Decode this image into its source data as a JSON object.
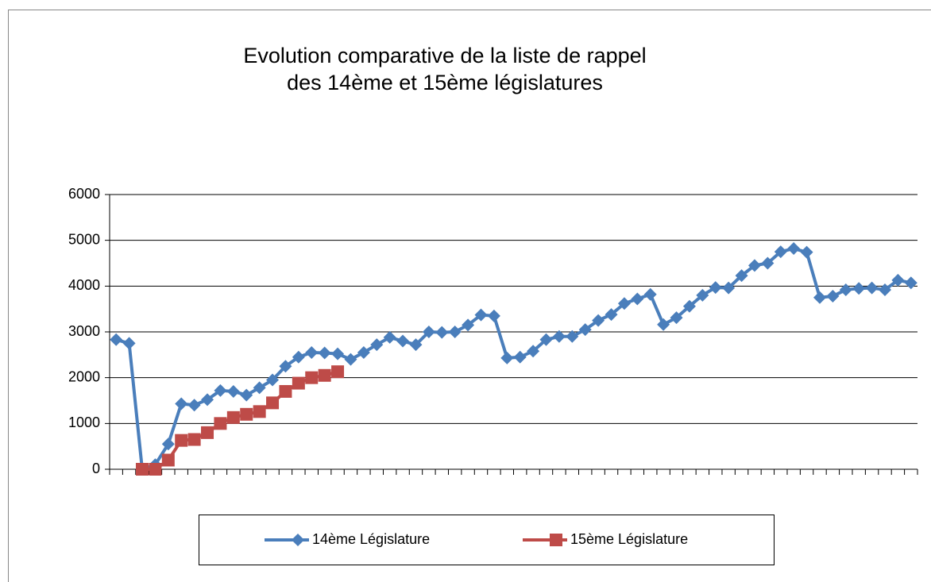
{
  "chart_data": {
    "type": "line",
    "title": [
      "Evolution comparative de la liste de rappel",
      "des 14ème et 15ème législatures"
    ],
    "categories": [
      null,
      null,
      null,
      null,
      null,
      null,
      null,
      null,
      null,
      null,
      null,
      null,
      null,
      null,
      null,
      null,
      null,
      null,
      null,
      null,
      null,
      null,
      null,
      null,
      null,
      null,
      null,
      null,
      null,
      null,
      null,
      null,
      null,
      null,
      null,
      null,
      null,
      null,
      null,
      null,
      null,
      null,
      null,
      null,
      null,
      null,
      null,
      null,
      null,
      null,
      null,
      null,
      null,
      null,
      null,
      null,
      null,
      null,
      null,
      null,
      null,
      null
    ],
    "series": [
      {
        "name": "14ème Législature",
        "color": "#4a7ebb",
        "marker": "diamond",
        "values": [
          2830,
          2750,
          0,
          100,
          550,
          1430,
          1400,
          1520,
          1720,
          1700,
          1620,
          1780,
          1950,
          2250,
          2450,
          2550,
          2540,
          2520,
          2400,
          2550,
          2720,
          2880,
          2800,
          2720,
          3000,
          2990,
          3000,
          3150,
          3370,
          3350,
          2430,
          2450,
          2580,
          2830,
          2900,
          2900,
          3050,
          3250,
          3380,
          3620,
          3720,
          3820,
          3160,
          3310,
          3560,
          3800,
          3970,
          3960,
          4230,
          4450,
          4500,
          4750,
          4820,
          4740,
          3750,
          3780,
          3920,
          3950,
          3960,
          3920,
          4130,
          4070
        ]
      },
      {
        "name": "15ème Législature",
        "color": "#be4b48",
        "marker": "square",
        "values": [
          null,
          null,
          0,
          0,
          200,
          630,
          650,
          800,
          1000,
          1130,
          1200,
          1260,
          1450,
          1700,
          1880,
          2000,
          2050,
          2130,
          null,
          null,
          null,
          null,
          null,
          null,
          null,
          null,
          null,
          null,
          null,
          null,
          null,
          null,
          null,
          null,
          null,
          null,
          null,
          null,
          null,
          null,
          null,
          null,
          null,
          null,
          null,
          null,
          null,
          null,
          null,
          null,
          null,
          null,
          null,
          null,
          null,
          null,
          null,
          null,
          null,
          null,
          null,
          null
        ]
      }
    ],
    "ylim": [
      0,
      6000
    ],
    "yticks": [
      0,
      1000,
      2000,
      3000,
      4000,
      5000,
      6000
    ],
    "grid": true,
    "legend": "bottom"
  }
}
